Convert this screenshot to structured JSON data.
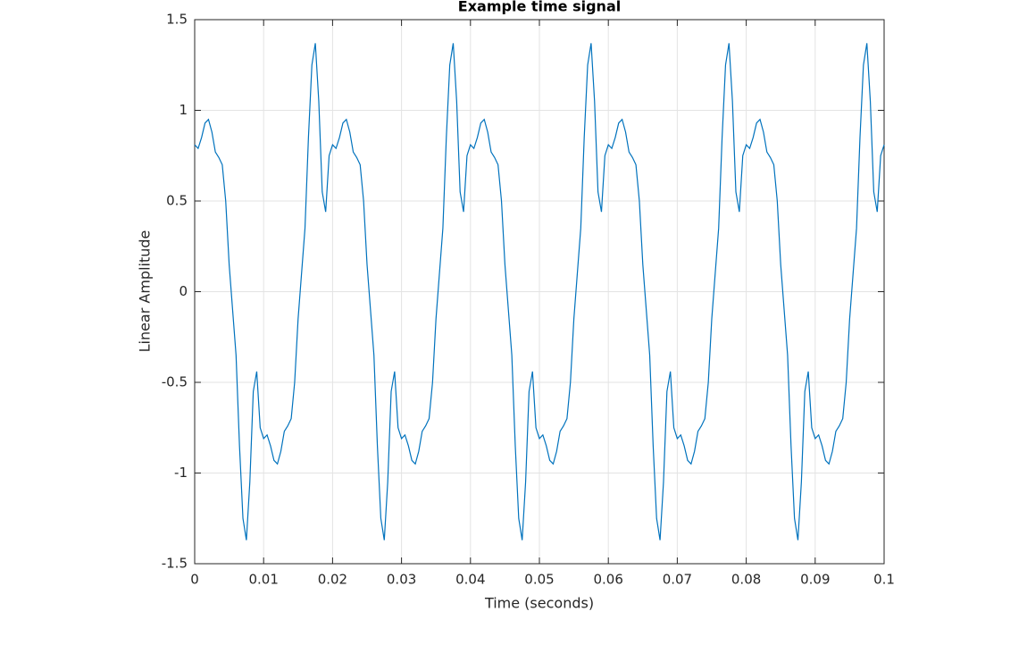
{
  "chart_data": {
    "type": "line",
    "title": "Example time signal",
    "x_label": "Time (seconds)",
    "y_label": "Linear Amplitude",
    "color": "#0072bd",
    "grid": true,
    "xlim": [
      0,
      0.1
    ],
    "ylim": [
      -1.5,
      1.5
    ],
    "xticks": [
      0,
      0.01,
      0.02,
      0.03,
      0.04,
      0.05,
      0.06,
      0.07,
      0.08,
      0.09,
      0.1
    ],
    "yticks": [
      -1.5,
      -1,
      -0.5,
      0,
      0.5,
      1,
      1.5
    ],
    "x": [
      0,
      0.0005,
      0.001,
      0.0015,
      0.002,
      0.0025,
      0.003,
      0.0035,
      0.004,
      0.0045,
      0.005,
      0.0055,
      0.006,
      0.0065,
      0.007,
      0.0075,
      0.008,
      0.0085,
      0.009,
      0.0095,
      0.01,
      0.0105,
      0.011,
      0.0115,
      0.012,
      0.0125,
      0.013,
      0.0135,
      0.014,
      0.0145,
      0.015,
      0.0155,
      0.016,
      0.0165,
      0.017,
      0.0175,
      0.018,
      0.0185,
      0.019,
      0.0195,
      0.02,
      0.0205,
      0.021,
      0.0215,
      0.022,
      0.0225,
      0.023,
      0.0235,
      0.024,
      0.0245,
      0.025,
      0.0255,
      0.026,
      0.0265,
      0.027,
      0.0275,
      0.028,
      0.0285,
      0.029,
      0.0295,
      0.03,
      0.0305,
      0.031,
      0.0315,
      0.032,
      0.0325,
      0.033,
      0.0335,
      0.034,
      0.0345,
      0.035,
      0.0355,
      0.036,
      0.0365,
      0.037,
      0.0375,
      0.038,
      0.0385,
      0.039,
      0.0395,
      0.04,
      0.0405,
      0.041,
      0.0415,
      0.042,
      0.0425,
      0.043,
      0.0435,
      0.044,
      0.0445,
      0.045,
      0.0455,
      0.046,
      0.0465,
      0.047,
      0.0475,
      0.048,
      0.0485,
      0.049,
      0.0495,
      0.05,
      0.0505,
      0.051,
      0.0515,
      0.052,
      0.0525,
      0.053,
      0.0535,
      0.054,
      0.0545,
      0.055,
      0.0555,
      0.056,
      0.0565,
      0.057,
      0.0575,
      0.058,
      0.0585,
      0.059,
      0.0595,
      0.06,
      0.0605,
      0.061,
      0.0615,
      0.062,
      0.0625,
      0.063,
      0.0635,
      0.064,
      0.0645,
      0.065,
      0.0655,
      0.066,
      0.0665,
      0.067,
      0.0675,
      0.068,
      0.0685,
      0.069,
      0.0695,
      0.07,
      0.0705,
      0.071,
      0.0715,
      0.072,
      0.0725,
      0.073,
      0.0735,
      0.074,
      0.0745,
      0.075,
      0.0755,
      0.076,
      0.0765,
      0.077,
      0.0775,
      0.078,
      0.0785,
      0.079,
      0.0795,
      0.08,
      0.0805,
      0.081,
      0.0815,
      0.082,
      0.0825,
      0.083,
      0.0835,
      0.084,
      0.0845,
      0.085,
      0.0855,
      0.086,
      0.0865,
      0.087,
      0.0875,
      0.088,
      0.0885,
      0.089,
      0.0895,
      0.09,
      0.0905,
      0.091,
      0.0915,
      0.092,
      0.0925,
      0.093,
      0.0935,
      0.094,
      0.0945,
      0.095,
      0.0955,
      0.096,
      0.0965,
      0.097,
      0.0975,
      0.098,
      0.0985,
      0.099,
      0.0995,
      0.1
    ],
    "values": [
      0.81,
      0.79,
      0.85,
      0.93,
      0.95,
      0.88,
      0.77,
      0.74,
      0.7,
      0.5,
      0.15,
      -0.1,
      -0.35,
      -0.85,
      -1.25,
      -1.37,
      -1.05,
      -0.55,
      -0.44,
      -0.75,
      -0.81,
      -0.79,
      -0.85,
      -0.93,
      -0.95,
      -0.88,
      -0.77,
      -0.74,
      -0.7,
      -0.5,
      -0.15,
      0.1,
      0.35,
      0.85,
      1.25,
      1.37,
      1.05,
      0.55,
      0.44,
      0.75,
      0.81,
      0.79,
      0.85,
      0.93,
      0.95,
      0.88,
      0.77,
      0.74,
      0.7,
      0.5,
      0.15,
      -0.1,
      -0.35,
      -0.85,
      -1.25,
      -1.37,
      -1.05,
      -0.55,
      -0.44,
      -0.75,
      -0.81,
      -0.79,
      -0.85,
      -0.93,
      -0.95,
      -0.88,
      -0.77,
      -0.74,
      -0.7,
      -0.5,
      -0.15,
      0.1,
      0.35,
      0.85,
      1.25,
      1.37,
      1.05,
      0.55,
      0.44,
      0.75,
      0.81,
      0.79,
      0.85,
      0.93,
      0.95,
      0.88,
      0.77,
      0.74,
      0.7,
      0.5,
      0.15,
      -0.1,
      -0.35,
      -0.85,
      -1.25,
      -1.37,
      -1.05,
      -0.55,
      -0.44,
      -0.75,
      -0.81,
      -0.79,
      -0.85,
      -0.93,
      -0.95,
      -0.88,
      -0.77,
      -0.74,
      -0.7,
      -0.5,
      -0.15,
      0.1,
      0.35,
      0.85,
      1.25,
      1.37,
      1.05,
      0.55,
      0.44,
      0.75,
      0.81,
      0.79,
      0.85,
      0.93,
      0.95,
      0.88,
      0.77,
      0.74,
      0.7,
      0.5,
      0.15,
      -0.1,
      -0.35,
      -0.85,
      -1.25,
      -1.37,
      -1.05,
      -0.55,
      -0.44,
      -0.75,
      -0.81,
      -0.79,
      -0.85,
      -0.93,
      -0.95,
      -0.88,
      -0.77,
      -0.74,
      -0.7,
      -0.5,
      -0.15,
      0.1,
      0.35,
      0.85,
      1.25,
      1.37,
      1.05,
      0.55,
      0.44,
      0.75,
      0.81,
      0.79,
      0.85,
      0.93,
      0.95,
      0.88,
      0.77,
      0.74,
      0.7,
      0.5,
      0.15,
      -0.1,
      -0.35,
      -0.85,
      -1.25,
      -1.37,
      -1.05,
      -0.55,
      -0.44,
      -0.75,
      -0.81,
      -0.79,
      -0.85,
      -0.93,
      -0.95,
      -0.88,
      -0.77,
      -0.74,
      -0.7,
      -0.5,
      -0.15,
      0.1,
      0.35,
      0.85,
      1.25,
      1.37,
      1.05,
      0.55,
      0.44,
      0.75,
      0.81
    ]
  }
}
